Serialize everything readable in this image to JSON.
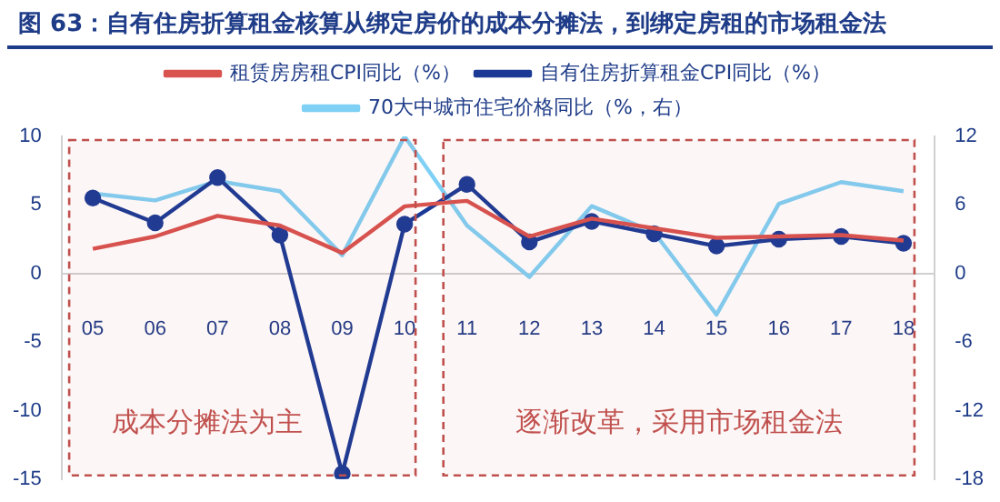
{
  "chart_data": {
    "type": "line",
    "title": "图 63：自有住房折算租金核算从绑定房价的成本分摊法，到绑定房租的市场租金法",
    "categories": [
      "05",
      "06",
      "07",
      "08",
      "09",
      "10",
      "11",
      "12",
      "13",
      "14",
      "15",
      "16",
      "17",
      "18"
    ],
    "series": [
      {
        "name": "自有住房折算租金CPI同比（%）",
        "color": "#1a3a96",
        "marker": "circle",
        "values": [
          5.5,
          3.7,
          7.0,
          2.8,
          -14.6,
          3.6,
          6.5,
          2.3,
          3.8,
          2.9,
          2.0,
          2.5,
          2.7,
          2.2
        ]
      },
      {
        "name": "租赁房房租CPI同比（%）",
        "color": "#d9534f",
        "marker": "none",
        "values": [
          1.8,
          2.7,
          4.2,
          3.5,
          1.5,
          4.9,
          5.3,
          2.7,
          4.0,
          3.3,
          2.6,
          2.7,
          2.8,
          2.4
        ]
      },
      {
        "name": "70大中城市住宅价格同比（%，右）",
        "color": "#7fd0f5",
        "marker": "none",
        "axis": "y2",
        "values": [
          7.0,
          6.4,
          8.1,
          7.2,
          1.6,
          12.0,
          4.2,
          -0.3,
          5.9,
          3.6,
          -3.6,
          6.1,
          8.0,
          7.2
        ]
      }
    ],
    "ylim": [
      -15,
      10
    ],
    "yticks": [
      -15,
      -10,
      -5,
      0,
      5,
      10
    ],
    "y2lim": [
      -18,
      12
    ],
    "y2ticks": [
      -18,
      -12,
      -6,
      0,
      6,
      12
    ],
    "bands": [
      {
        "axis": "x",
        "from": "05",
        "to": "10",
        "label": "成本分摊法为主",
        "color": "#c0504d"
      },
      {
        "axis": "x",
        "from": "11",
        "to": "18",
        "label": "逐渐改革，采用市场租金法",
        "color": "#c0504d"
      }
    ],
    "grid": false,
    "legend": "top",
    "line_style": "solid"
  }
}
